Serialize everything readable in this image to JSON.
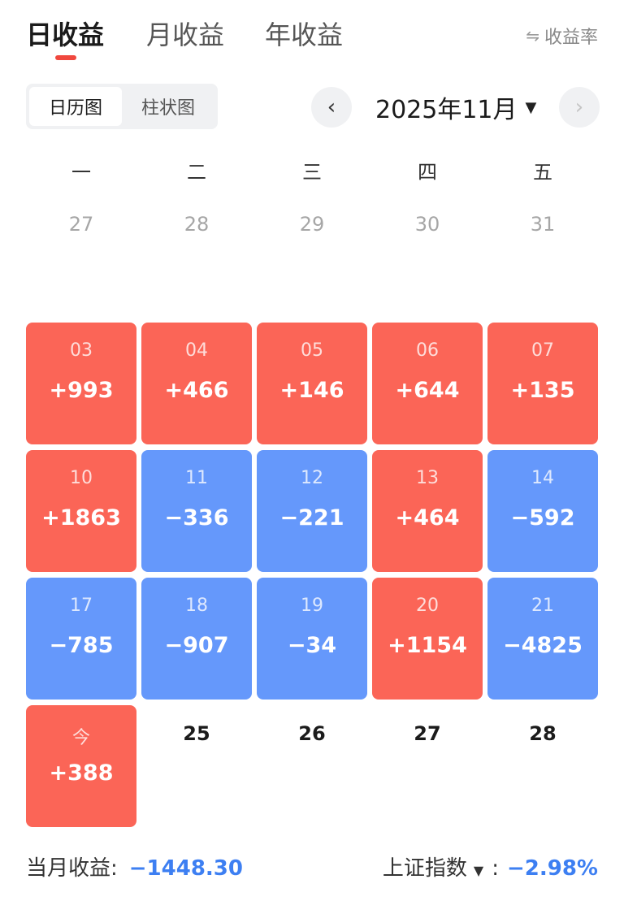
{
  "tabs": [
    {
      "label": "日收益"
    },
    {
      "label": "月收益"
    },
    {
      "label": "年收益"
    }
  ],
  "rate_toggle": {
    "label": "收益率",
    "icon": "swap-icon"
  },
  "view_switch": {
    "calendar": "日历图",
    "bar": "柱状图"
  },
  "month": {
    "label": "2025年11月",
    "prev": "‹",
    "next": "›"
  },
  "weekdays": [
    "一",
    "二",
    "三",
    "四",
    "五"
  ],
  "prev_month_days": [
    "27",
    "28",
    "29",
    "30",
    "31"
  ],
  "weeks": [
    [
      {
        "day": "03",
        "value": "+993",
        "type": "gain"
      },
      {
        "day": "04",
        "value": "+466",
        "type": "gain"
      },
      {
        "day": "05",
        "value": "+146",
        "type": "gain"
      },
      {
        "day": "06",
        "value": "+644",
        "type": "gain"
      },
      {
        "day": "07",
        "value": "+135",
        "type": "gain"
      }
    ],
    [
      {
        "day": "10",
        "value": "+1863",
        "type": "gain"
      },
      {
        "day": "11",
        "value": "−336",
        "type": "loss"
      },
      {
        "day": "12",
        "value": "−221",
        "type": "loss"
      },
      {
        "day": "13",
        "value": "+464",
        "type": "gain"
      },
      {
        "day": "14",
        "value": "−592",
        "type": "loss"
      }
    ],
    [
      {
        "day": "17",
        "value": "−785",
        "type": "loss"
      },
      {
        "day": "18",
        "value": "−907",
        "type": "loss"
      },
      {
        "day": "19",
        "value": "−34",
        "type": "loss"
      },
      {
        "day": "20",
        "value": "+1154",
        "type": "gain"
      },
      {
        "day": "21",
        "value": "−4825",
        "type": "loss"
      }
    ]
  ],
  "today": {
    "day": "今",
    "value": "+388",
    "type": "gain"
  },
  "future_days": [
    "25",
    "26",
    "27",
    "28"
  ],
  "footer": {
    "month_label": "当月收益:",
    "month_value": "−1448.30",
    "index_label": "上证指数",
    "index_caret": "▼",
    "index_sep": ":",
    "index_value": "−2.98%"
  },
  "colors": {
    "gain": "#fb6557",
    "loss": "#6598fb",
    "accent": "#f0483e",
    "negative_text": "#3d7ff2"
  }
}
